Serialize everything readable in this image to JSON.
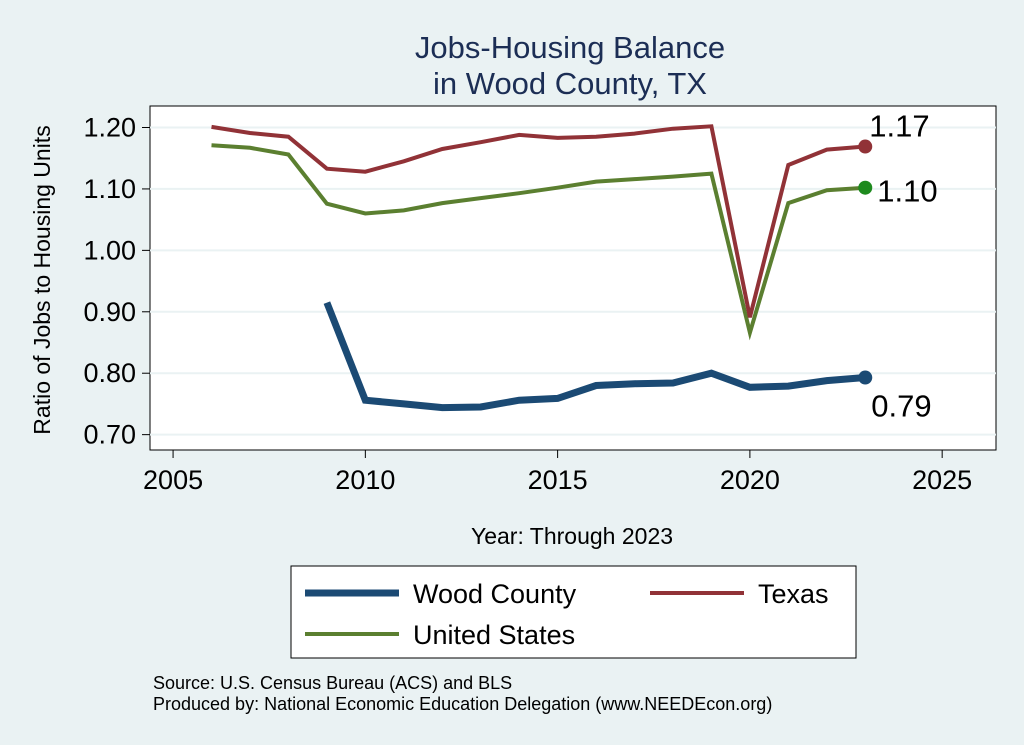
{
  "chart_data": {
    "type": "line",
    "title": [
      "Jobs-Housing Balance",
      "in Wood County, TX"
    ],
    "xlabel": "Year: Through 2023",
    "ylabel": "Ratio of Jobs to Housing Units",
    "xlim": [
      2004.4,
      2026.4
    ],
    "ylim": [
      0.675,
      1.235
    ],
    "x_ticks": [
      2005,
      2010,
      2015,
      2020,
      2025
    ],
    "y_ticks": [
      0.7,
      0.8,
      0.9,
      1.0,
      1.1,
      1.2
    ],
    "y_tick_labels": [
      "0.70",
      "0.80",
      "0.90",
      "1.00",
      "1.10",
      "1.20"
    ],
    "grid": true,
    "legend_position": "bottom",
    "series": [
      {
        "name": "Wood County",
        "color": "#1b4a74",
        "width": "thick",
        "x": [
          2009,
          2010,
          2011,
          2012,
          2013,
          2014,
          2015,
          2016,
          2017,
          2018,
          2019,
          2020,
          2021,
          2022,
          2023
        ],
        "values": [
          0.915,
          0.756,
          0.75,
          0.744,
          0.745,
          0.756,
          0.759,
          0.78,
          0.783,
          0.784,
          0.8,
          0.777,
          0.779,
          0.788,
          0.793
        ],
        "end_label": "0.79",
        "marker_color": "#1b4a74"
      },
      {
        "name": "Texas",
        "color": "#913237",
        "width": "normal",
        "x": [
          2006,
          2007,
          2008,
          2009,
          2010,
          2011,
          2012,
          2013,
          2014,
          2015,
          2016,
          2017,
          2018,
          2019,
          2020,
          2021,
          2022,
          2023
        ],
        "values": [
          1.201,
          1.191,
          1.185,
          1.133,
          1.128,
          1.145,
          1.165,
          1.176,
          1.188,
          1.183,
          1.185,
          1.19,
          1.198,
          1.202,
          0.891,
          1.139,
          1.164,
          1.169
        ],
        "end_label": "1.17",
        "marker_color": "#913237"
      },
      {
        "name": "United States",
        "color": "#5b7f30",
        "width": "normal",
        "x": [
          2006,
          2007,
          2008,
          2009,
          2010,
          2011,
          2012,
          2013,
          2014,
          2015,
          2016,
          2017,
          2018,
          2019,
          2020,
          2021,
          2022,
          2023
        ],
        "values": [
          1.171,
          1.167,
          1.156,
          1.076,
          1.06,
          1.065,
          1.077,
          1.085,
          1.093,
          1.102,
          1.112,
          1.116,
          1.12,
          1.125,
          0.866,
          1.077,
          1.098,
          1.102
        ],
        "end_label": "1.10",
        "marker_color": "#1e8a1e"
      }
    ],
    "legend": [
      {
        "name": "Wood County",
        "series": 0
      },
      {
        "name": "Texas",
        "series": 1
      },
      {
        "name": "United States",
        "series": 2
      }
    ],
    "source": [
      "Source: U.S. Census Bureau (ACS) and BLS",
      "Produced by: National Economic Education Delegation (www.NEEDEcon.org)"
    ]
  }
}
